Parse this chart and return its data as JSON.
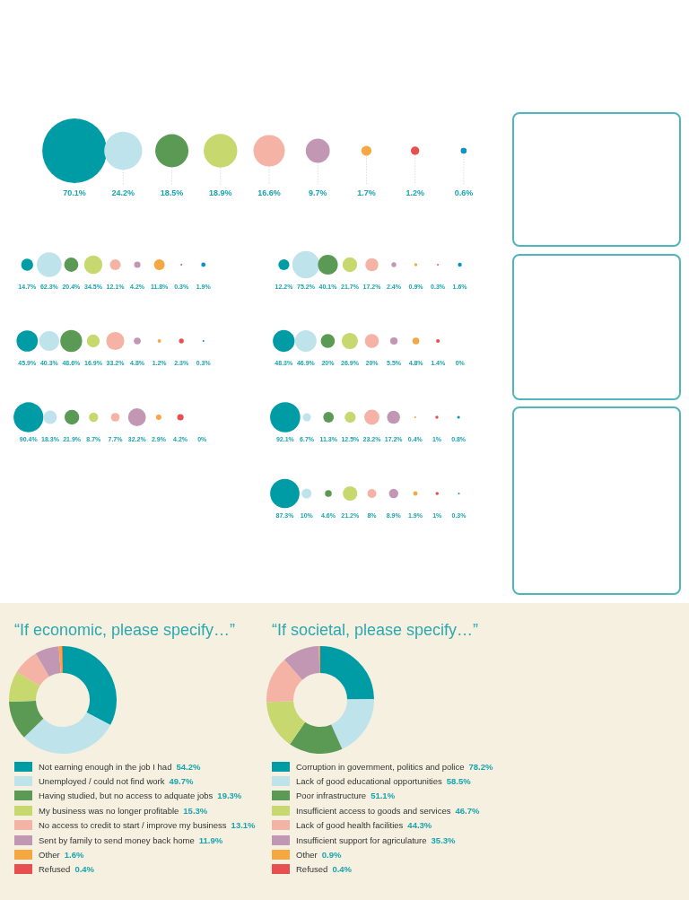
{
  "chart_data": [
    {
      "type": "other",
      "categories": [
        null,
        null,
        null,
        null,
        null,
        null,
        null,
        null,
        null
      ],
      "values": [
        70.1,
        24.2,
        18.5,
        18.9,
        16.6,
        9.7,
        1.7,
        1.2,
        0.6
      ],
      "value_labels": [
        "70.1%",
        "24.2%",
        "18.5%",
        "18.9%",
        "16.6%",
        "9.7%",
        "1.7%",
        "1.2%",
        "0.6%"
      ],
      "colors": [
        "#009ca6",
        "#bfe3ea",
        "#5a9a55",
        "#c6d86e",
        "#f4b3a5",
        "#c197b3",
        "#f5a742",
        "#e84f50",
        "#0a92c8"
      ]
    },
    {
      "type": "other",
      "categories": [
        null,
        null,
        null,
        null,
        null,
        null,
        null,
        null,
        null
      ],
      "values": [
        14.7,
        62.3,
        20.4,
        34.5,
        12.1,
        4.2,
        11.8,
        0.3,
        1.9
      ],
      "value_labels": [
        "14.7%",
        "62.3%",
        "20.4%",
        "34.5%",
        "12.1%",
        "4.2%",
        "11.8%",
        "0.3%",
        "1.9%"
      ],
      "colors": [
        "#009ca6",
        "#bfe3ea",
        "#5a9a55",
        "#c6d86e",
        "#f4b3a5",
        "#c197b3",
        "#f5a742",
        "#e84f50",
        "#0a92c8"
      ]
    },
    {
      "type": "other",
      "categories": [
        null,
        null,
        null,
        null,
        null,
        null,
        null,
        null,
        null
      ],
      "values": [
        12.2,
        75.2,
        40.1,
        21.7,
        17.2,
        2.4,
        0.9,
        0.3,
        1.6
      ],
      "value_labels": [
        "12.2%",
        "75.2%",
        "40.1%",
        "21.7%",
        "17.2%",
        "2.4%",
        "0.9%",
        "0.3%",
        "1.6%"
      ],
      "colors": [
        "#009ca6",
        "#bfe3ea",
        "#5a9a55",
        "#c6d86e",
        "#f4b3a5",
        "#c197b3",
        "#f5a742",
        "#e84f50",
        "#0a92c8"
      ]
    },
    {
      "type": "other",
      "categories": [
        null,
        null,
        null,
        null,
        null,
        null,
        null,
        null,
        null
      ],
      "values": [
        45.9,
        40.3,
        48.6,
        16.9,
        33.2,
        4.8,
        1.2,
        2.3,
        0.3
      ],
      "value_labels": [
        "45.9%",
        "40.3%",
        "48.6%",
        "16.9%",
        "33.2%",
        "4.8%",
        "1.2%",
        "2.3%",
        "0.3%"
      ],
      "colors": [
        "#009ca6",
        "#bfe3ea",
        "#5a9a55",
        "#c6d86e",
        "#f4b3a5",
        "#c197b3",
        "#f5a742",
        "#e84f50",
        "#0a92c8"
      ]
    },
    {
      "type": "other",
      "categories": [
        null,
        null,
        null,
        null,
        null,
        null,
        null,
        null,
        null
      ],
      "values": [
        48.3,
        46.9,
        20,
        26.9,
        20,
        5.5,
        4.8,
        1.4,
        0
      ],
      "value_labels": [
        "48.3%",
        "46.9%",
        "20%",
        "26.9%",
        "20%",
        "5.5%",
        "4.8%",
        "1.4%",
        "0%"
      ],
      "colors": [
        "#009ca6",
        "#bfe3ea",
        "#5a9a55",
        "#c6d86e",
        "#f4b3a5",
        "#c197b3",
        "#f5a742",
        "#e84f50",
        "#0a92c8"
      ]
    },
    {
      "type": "other",
      "categories": [
        null,
        null,
        null,
        null,
        null,
        null,
        null,
        null,
        null
      ],
      "values": [
        90.4,
        18.3,
        21.9,
        8.7,
        7.7,
        32.2,
        2.9,
        4.2,
        0
      ],
      "value_labels": [
        "90.4%",
        "18.3%",
        "21.9%",
        "8.7%",
        "7.7%",
        "32.2%",
        "2.9%",
        "4.2%",
        "0%"
      ],
      "colors": [
        "#009ca6",
        "#bfe3ea",
        "#5a9a55",
        "#c6d86e",
        "#f4b3a5",
        "#c197b3",
        "#f5a742",
        "#e84f50",
        "#0a92c8"
      ]
    },
    {
      "type": "other",
      "categories": [
        null,
        null,
        null,
        null,
        null,
        null,
        null,
        null,
        null
      ],
      "values": [
        92.1,
        6.7,
        11.3,
        12.5,
        23.2,
        17.2,
        0.4,
        1,
        0.8
      ],
      "value_labels": [
        "92.1%",
        "6.7%",
        "11.3%",
        "12.5%",
        "23.2%",
        "17.2%",
        "0.4%",
        "1%",
        "0.8%"
      ],
      "colors": [
        "#009ca6",
        "#bfe3ea",
        "#5a9a55",
        "#c6d86e",
        "#f4b3a5",
        "#c197b3",
        "#f5a742",
        "#e84f50",
        "#0a92c8"
      ]
    },
    {
      "type": "other",
      "categories": [
        null,
        null,
        null,
        null,
        null,
        null,
        null,
        null,
        null
      ],
      "values": [
        87.3,
        10,
        4.6,
        21.2,
        8,
        8.9,
        1.9,
        1,
        0.3
      ],
      "value_labels": [
        "87.3%",
        "10%",
        "4.6%",
        "21.2%",
        "8%",
        "8.9%",
        "1.9%",
        "1%",
        "0.3%"
      ],
      "colors": [
        "#009ca6",
        "#bfe3ea",
        "#5a9a55",
        "#c6d86e",
        "#f4b3a5",
        "#c197b3",
        "#f5a742",
        "#e84f50",
        "#0a92c8"
      ]
    },
    {
      "type": "donut",
      "title": "“If economic, please specify…”",
      "categories": [
        "Not earning enough in the job I had",
        "Unemployed / could not find work",
        "Having studied, but no access to adquate jobs",
        "My business was no longer profitable",
        "No access to credit to start / improve my business",
        "Sent by family to send money back home",
        "Other",
        "Refused"
      ],
      "values": [
        54.2,
        49.7,
        19.3,
        15.3,
        13.1,
        11.9,
        1.6,
        0.4
      ],
      "value_labels": [
        "54.2%",
        "49.7%",
        "19.3%",
        "15.3%",
        "13.1%",
        "11.9%",
        "1.6%",
        "0.4%"
      ],
      "colors": [
        "#009ca6",
        "#bfe3ea",
        "#5a9a55",
        "#c6d86e",
        "#f4b3a5",
        "#c197b3",
        "#f5a742",
        "#e84f50"
      ],
      "legend": "bottom"
    },
    {
      "type": "donut",
      "title": "“If societal, please specify…”",
      "categories": [
        "Corruption in government, politics and police",
        "Lack of good educational opportunities",
        "Poor infrastructure",
        "Insufficient access to goods and services",
        "Lack of good health facilities",
        "Insufficient support for agriculature",
        "Other",
        "Refused"
      ],
      "values": [
        78.2,
        58.5,
        51.1,
        46.7,
        44.3,
        35.3,
        0.9,
        0.4
      ],
      "value_labels": [
        "78.2%",
        "58.5%",
        "51.1%",
        "46.7%",
        "44.3%",
        "35.3%",
        "0.9%",
        "0.4%"
      ],
      "colors": [
        "#009ca6",
        "#bfe3ea",
        "#5a9a55",
        "#c6d86e",
        "#f4b3a5",
        "#c197b3",
        "#f5a742",
        "#e84f50"
      ],
      "legend": "bottom"
    }
  ]
}
